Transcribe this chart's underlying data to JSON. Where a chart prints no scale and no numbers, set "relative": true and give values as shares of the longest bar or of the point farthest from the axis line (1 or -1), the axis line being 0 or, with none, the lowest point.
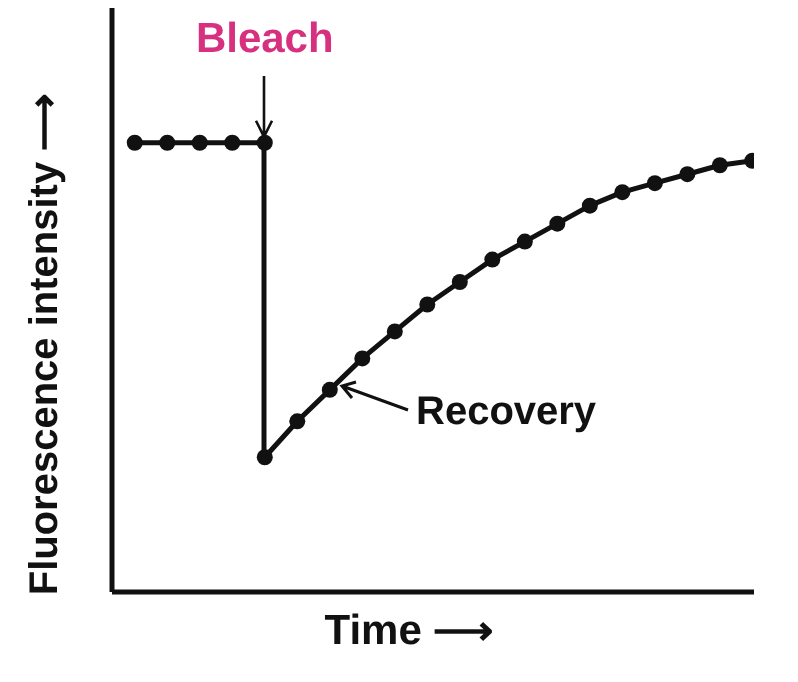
{
  "chart_data": {
    "type": "line",
    "relative": true,
    "xlabel": "Time ⟶",
    "ylabel": "Fluorescence intensity ⟶",
    "categories": [
      null,
      null,
      null,
      null,
      null,
      null,
      null,
      null,
      null,
      null,
      null,
      null,
      null,
      null,
      null,
      null,
      null,
      null,
      null,
      null
    ],
    "series": [
      {
        "color": "#111111",
        "values": [
          1,
          1,
          1,
          1,
          1,
          null,
          null,
          null,
          null,
          null,
          null,
          null,
          null,
          null,
          null,
          null,
          null,
          null,
          null,
          null
        ]
      },
      {
        "color": "#111111",
        "values": [
          null,
          null,
          null,
          null,
          0.3,
          0.38,
          0.45,
          0.52,
          0.58,
          0.64,
          0.69,
          0.74,
          0.78,
          0.82,
          0.86,
          0.89,
          0.91,
          0.93,
          0.95,
          0.96
        ]
      }
    ],
    "annotations": [
      "Bleach",
      "Recovery"
    ],
    "marker": "circle",
    "line_style": "solid",
    "grid": false
  }
}
